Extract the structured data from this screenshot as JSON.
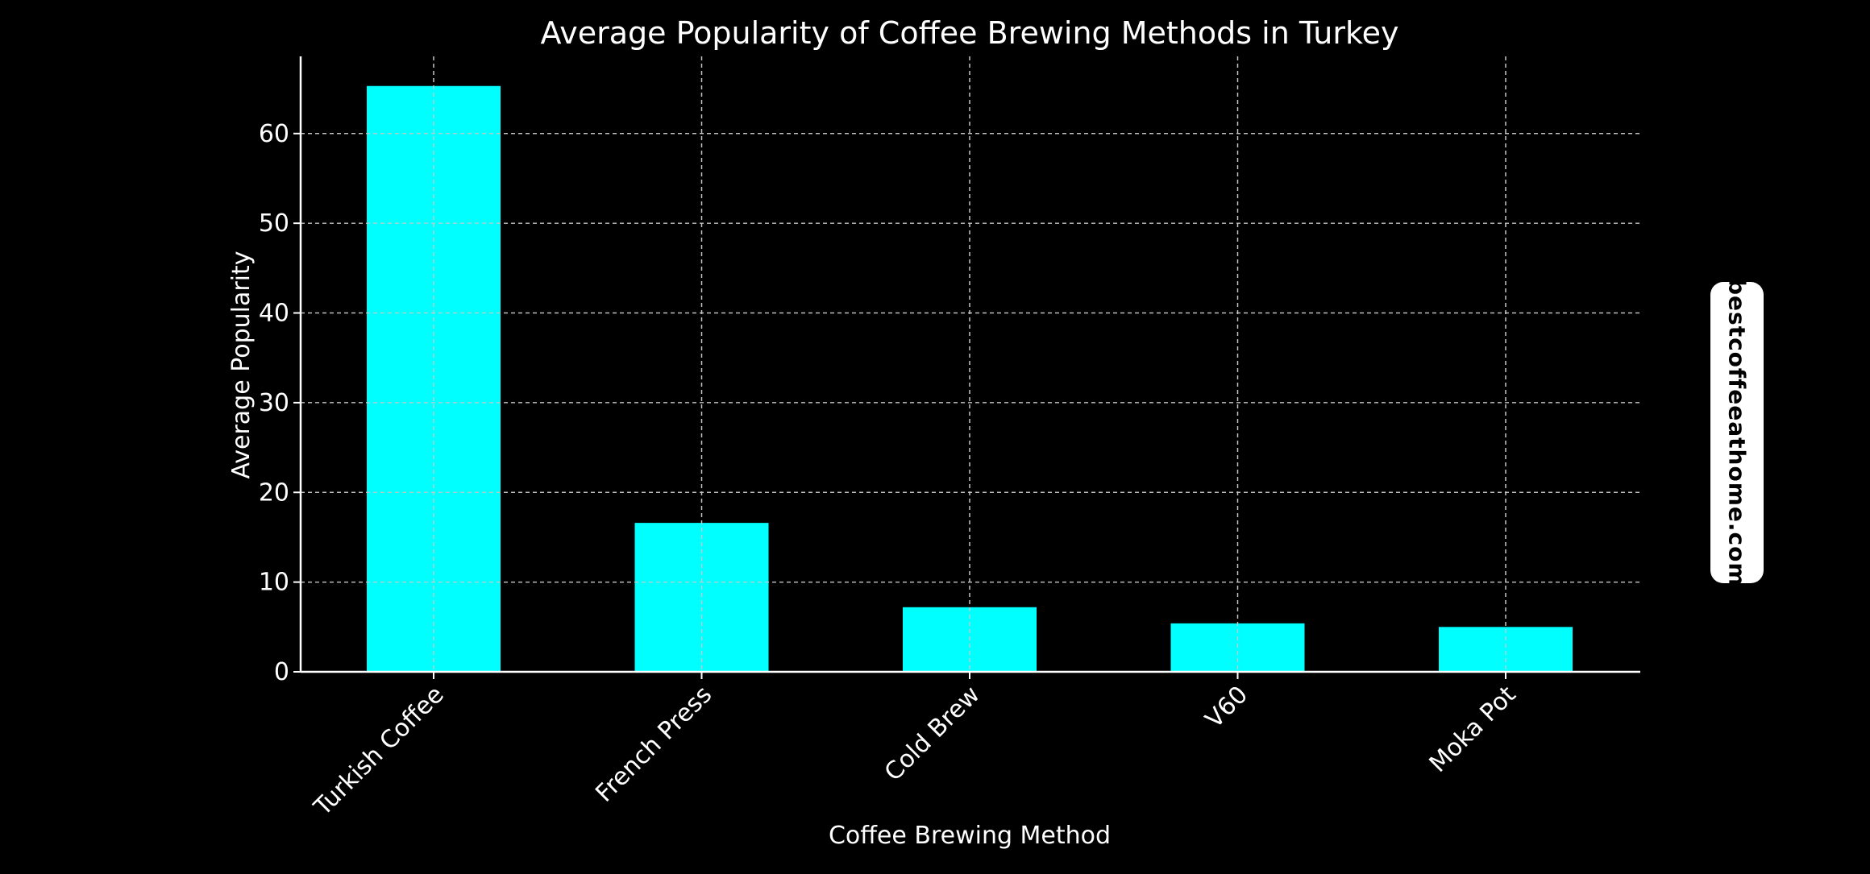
{
  "chart_data": {
    "type": "bar",
    "title": "Average Popularity of Coffee Brewing Methods in Turkey",
    "xlabel": "Coffee Brewing Method",
    "ylabel": "Average Popularity",
    "categories": [
      "Turkish Coffee",
      "French Press",
      "Cold Brew",
      "V60",
      "Moka Pot"
    ],
    "values": [
      65.3,
      16.6,
      7.2,
      5.4,
      5.0
    ],
    "ylim": [
      0,
      68.6
    ],
    "yticks": [
      0,
      10,
      20,
      30,
      40,
      50,
      60
    ],
    "grid": true,
    "bar_color": "#00ffff",
    "background_color": "#000000",
    "text_color": "#ffffff"
  },
  "watermark": {
    "text": "bestcoffeeathome.com"
  }
}
